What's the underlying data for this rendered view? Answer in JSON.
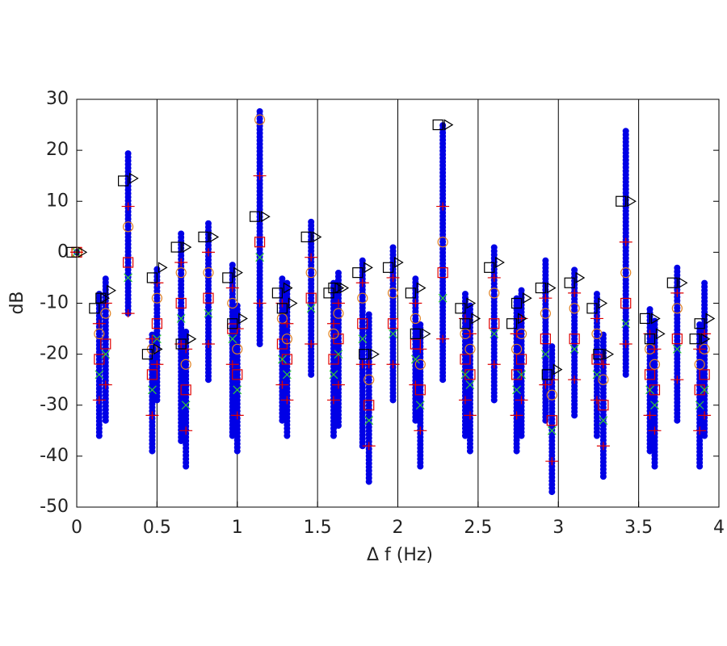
{
  "chart_data": {
    "type": "scatter",
    "xlabel": "Δ f (Hz)",
    "ylabel": "dB",
    "xlim": [
      0,
      4
    ],
    "xticks": [
      0,
      0.5,
      1,
      1.5,
      2,
      2.5,
      3,
      3.5,
      4
    ],
    "ylim": [
      -50,
      30
    ],
    "yticks": [
      -50,
      -40,
      -30,
      -20,
      -10,
      0,
      10,
      20,
      30
    ],
    "grid": "x",
    "x": [
      0,
      0.14,
      0.18,
      0.32,
      0.47,
      0.5,
      0.65,
      0.68,
      0.82,
      0.97,
      1.0,
      1.14,
      1.28,
      1.31,
      1.46,
      1.6,
      1.63,
      1.78,
      1.82,
      1.97,
      2.11,
      2.14,
      2.28,
      2.42,
      2.45,
      2.6,
      2.74,
      2.77,
      2.92,
      2.96,
      3.1,
      3.24,
      3.28,
      3.42,
      3.57,
      3.6,
      3.74,
      3.88,
      3.91
    ],
    "range": {
      "color": "#0000e6",
      "low": [
        0,
        -36,
        -33,
        -12,
        -39,
        -29,
        -37,
        -42,
        -25,
        -36,
        -39,
        -18,
        -33,
        -36,
        -24,
        -36,
        -34,
        -38,
        -45,
        -29,
        -33,
        -42,
        -25,
        -36,
        -39,
        -29,
        -39,
        -36,
        -33,
        -47,
        -32,
        -36,
        -44,
        -24,
        -39,
        -42,
        -33,
        -42,
        -36
      ],
      "high": [
        0,
        -8,
        -5,
        20,
        -16,
        -3,
        4,
        -15,
        6,
        -2,
        -10,
        28,
        -5,
        -6,
        6,
        -6,
        -4,
        -1,
        -12,
        1,
        -5,
        -14,
        25,
        -8,
        -10,
        1,
        -9,
        -7,
        -1,
        -18,
        -3,
        -8,
        -16,
        24,
        -11,
        -13,
        -3,
        -14,
        -6
      ]
    },
    "series": [
      {
        "marker": "square",
        "color": "#e00000",
        "values": [
          0,
          -21,
          -18,
          -2,
          -24,
          -14,
          -10,
          -27,
          -9,
          -15,
          -24,
          2,
          -18,
          -21,
          -9,
          -21,
          -17,
          -14,
          -30,
          -14,
          -18,
          -27,
          -4,
          -21,
          -24,
          -14,
          -24,
          -21,
          -17,
          -33,
          -17,
          -21,
          -30,
          -10,
          -24,
          -27,
          -17,
          -27,
          -24
        ]
      },
      {
        "marker": "circle",
        "color": "#e08020",
        "values": [
          0,
          -16,
          -12,
          5,
          -19,
          -9,
          -4,
          -22,
          -4,
          -10,
          -19,
          26,
          -13,
          -17,
          -4,
          -16,
          -12,
          -9,
          -25,
          -8,
          -13,
          -22,
          2,
          -16,
          -19,
          -8,
          -19,
          -16,
          -12,
          -28,
          -11,
          -16,
          -25,
          -4,
          -19,
          -22,
          -11,
          -22,
          -19
        ]
      },
      {
        "marker": "x",
        "color": "#33cc33",
        "values": [
          0,
          -24,
          -20,
          -5,
          -27,
          -17,
          -13,
          -30,
          -12,
          -17,
          -27,
          -1,
          -21,
          -24,
          -11,
          -24,
          -20,
          -17,
          -33,
          -16,
          -21,
          -30,
          -9,
          -24,
          -26,
          -16,
          -27,
          -24,
          -20,
          -35,
          -19,
          -24,
          -33,
          -14,
          -27,
          -30,
          -19,
          -30,
          -27
        ]
      },
      {
        "marker": "plus",
        "color": "#e00000",
        "values": [
          0,
          -14,
          -10,
          9,
          -17,
          -6,
          -2,
          -19,
          0,
          -7,
          -15,
          15,
          -10,
          -14,
          -1,
          -14,
          -10,
          -6,
          -22,
          -5,
          -10,
          -19,
          9,
          -13,
          -16,
          -5,
          -16,
          -13,
          -9,
          -25,
          -8,
          -13,
          -22,
          2,
          -16,
          -19,
          -8,
          -19,
          -16
        ]
      },
      {
        "marker": "plus",
        "color": "#e00000",
        "values": [
          0,
          -29,
          -26,
          -12,
          -32,
          -22,
          -18,
          -35,
          -18,
          -22,
          -32,
          -10,
          -26,
          -29,
          -18,
          -29,
          -26,
          -22,
          -38,
          -22,
          -26,
          -35,
          -17,
          -29,
          -32,
          -22,
          -32,
          -29,
          -26,
          -41,
          -25,
          -29,
          -38,
          -18,
          -32,
          -35,
          -25,
          -35,
          -32
        ]
      },
      {
        "marker": "square",
        "color": "#000000",
        "values": [
          0,
          -11,
          -9,
          14,
          -20,
          -5,
          1,
          -18,
          3,
          -5,
          -14,
          7,
          -8,
          -11,
          3,
          -8,
          -7,
          -4,
          -20,
          -3,
          -8,
          -16,
          25,
          -11,
          -14,
          -3,
          -14,
          -10,
          -7,
          -24,
          -6,
          -11,
          -20,
          10,
          -13,
          -17,
          -6,
          -17,
          -14
        ]
      },
      {
        "marker": "triangle",
        "color": "#000000",
        "values": [
          0,
          -9,
          -7.5,
          14.5,
          -19,
          -3,
          1,
          -17,
          3,
          -4,
          -13,
          7,
          -7,
          -10,
          3,
          -7,
          -7,
          -3,
          -20,
          -2,
          -7,
          -16,
          25,
          -10,
          -13,
          -2,
          -13,
          -9,
          -7,
          -23,
          -5,
          -10,
          -20,
          10,
          -13,
          -16,
          -6,
          -17,
          -13
        ]
      }
    ]
  }
}
